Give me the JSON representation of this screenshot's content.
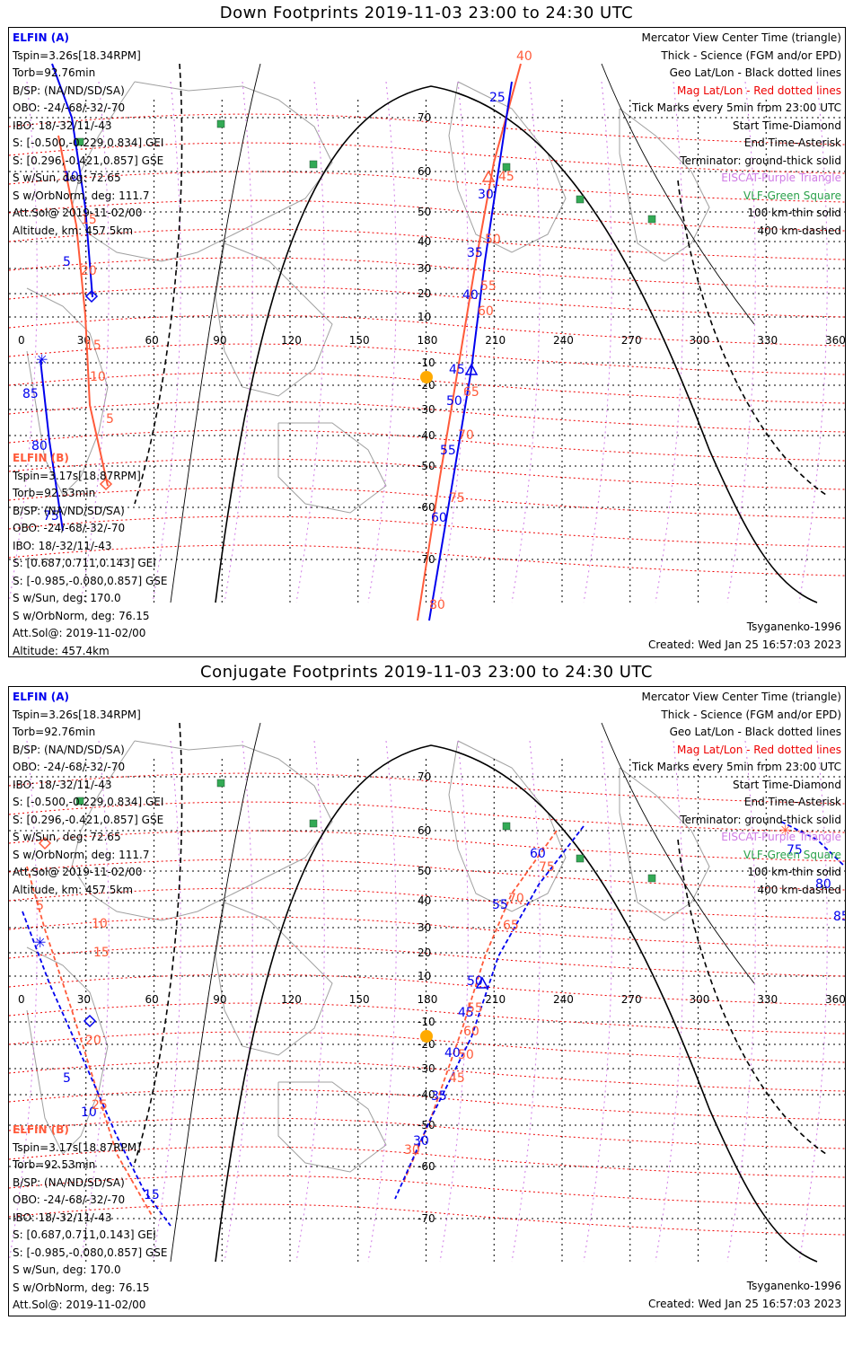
{
  "colors": {
    "grid_geo": "#000000",
    "grid_mag": "#ee0000",
    "elfin_a": "#0000ee",
    "elfin_b": "#ff5a3a",
    "eiscat": "#d07be6",
    "vlf": "#33aa55",
    "coast": "#a0a0a0",
    "sun": "#ffaa00"
  },
  "legend": {
    "l1": "Mercator View Center Time (triangle)",
    "l2": "Thick - Science (FGM and/or EPD)",
    "l3": "Geo Lat/Lon - Black dotted lines",
    "l4": "Mag Lat/Lon - Red dotted lines",
    "l5": "Tick Marks every 5min from 23:00 UTC",
    "l6": "Start Time-Diamond",
    "l7": "End Time-Asterisk",
    "l8": "Terminator: ground-thick solid",
    "l9": "EISCAT-Purple Triangle",
    "l10": "VLF-Green Square",
    "l11": "100 km-thin solid",
    "l12": "400 km-dashed"
  },
  "elfin_a": {
    "name": "ELFIN (A)",
    "tspin": "Tspin=3.26s[18.34RPM]",
    "torb": "Torb=92.76min",
    "bsp": "B/SP: (NA/ND/SD/SA)",
    "obo": "OBO: -24/-68/-32/-70",
    "ibo": "IBO: 18/-32/11/-43",
    "s_gei": "S: [-0.500,-0.229,0.834] GEI",
    "s_gse": "S: [0.296,-0.421,0.857] GSE",
    "sun": "S w/Sun, deg: 72.65",
    "orbnorm": "S w/OrbNorm, deg: 111.7",
    "attsol": "Att.Sol@ 2019-11-02/00",
    "altitude": "Altitude, km: 457.5km"
  },
  "elfin_b": {
    "name": "ELFIN (B)",
    "tspin": "Tspin=3.17s[18.87RPM]",
    "torb": "Torb=92.53min",
    "bsp": "B/SP: (NA/ND/SD/SA)",
    "obo": "OBO: -24/-68/-32/-70",
    "ibo": "IBO: 18/-32/11/-43",
    "s_gei": "S: [0.687,0.711,0.143] GEI",
    "s_gse": "S: [-0.985,-0.080,0.857] GSE",
    "sun": "S w/Sun, deg: 170.0",
    "orbnorm": "S w/OrbNorm, deg: 76.15",
    "attsol": "Att.Sol@: 2019-11-02/00",
    "altitude": "Altitude: 457.4km"
  },
  "model": "Tsyganenko-1996",
  "created": "Created: Wed Jan 25 16:57:03 2023",
  "lon_ticks": [
    "0",
    "30",
    "60",
    "90",
    "120",
    "150",
    "180",
    "210",
    "240",
    "270",
    "300",
    "330",
    "360"
  ],
  "lat_ticks": [
    "70",
    "60",
    "50",
    "40",
    "30",
    "20",
    "10",
    "-10",
    "-20",
    "-30",
    "-40",
    "-50",
    "-60",
    "-70"
  ],
  "panels": [
    {
      "title": "Down Footprints 2019-11-03 23:00 to 24:30 UTC",
      "a_labels": [
        "10",
        "5",
        "85",
        "80",
        "75",
        "25",
        "30",
        "35",
        "40",
        "45",
        "50",
        "55",
        "60"
      ],
      "b_labels": [
        "15",
        "20",
        "15",
        "10",
        "5",
        "40",
        "45",
        "50",
        "55",
        "60",
        "65",
        "70",
        "75",
        "80"
      ]
    },
    {
      "title": "Conjugate Footprints 2019-11-03 23:00 to 24:30 UTC",
      "a_labels": [
        "5",
        "10",
        "15",
        "30",
        "35",
        "40",
        "45",
        "50",
        "55",
        "60",
        "75",
        "80",
        "85"
      ],
      "b_labels": [
        "5",
        "10",
        "15",
        "20",
        "25",
        "30",
        "45",
        "50",
        "55",
        "60",
        "65",
        "70",
        "75"
      ]
    }
  ]
}
